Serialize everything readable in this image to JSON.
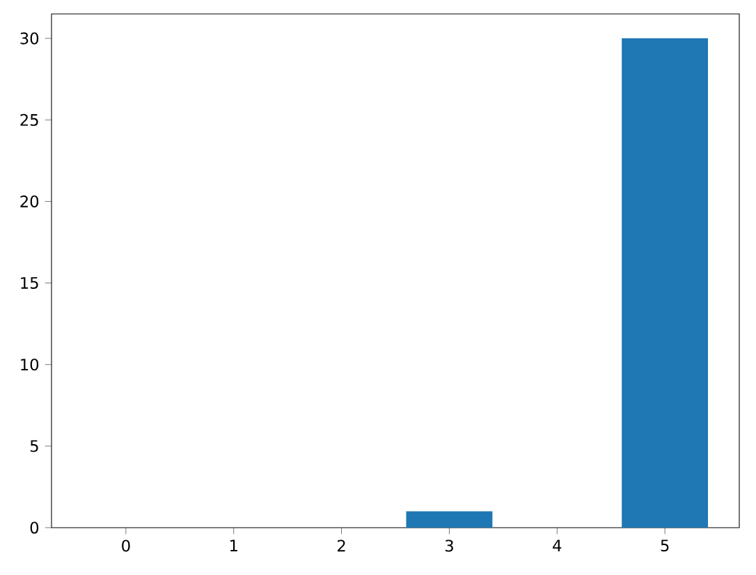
{
  "chart_data": {
    "type": "bar",
    "x": [
      0,
      1,
      2,
      3,
      4,
      5
    ],
    "values": [
      0,
      0,
      0,
      1,
      0,
      30
    ],
    "color": "#1f77b4",
    "xlim": [
      -0.69,
      5.69
    ],
    "xticks": [
      0,
      1,
      2,
      3,
      4,
      5
    ],
    "ylim": [
      0,
      31.5
    ],
    "yticks": [
      0,
      5,
      10,
      15,
      20,
      25,
      30
    ],
    "grid": false
  }
}
